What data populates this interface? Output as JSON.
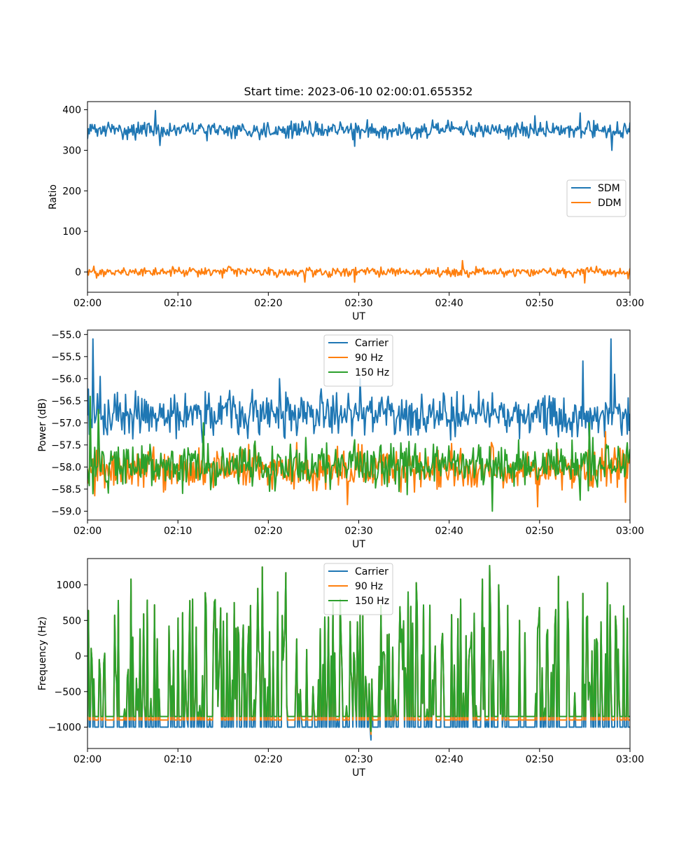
{
  "title": "Start time: 2023-06-10 02:00:01.655352",
  "chart_data": [
    {
      "type": "line",
      "xlabel": "UT",
      "ylabel": "Ratio",
      "x_range": [
        "02:00",
        "03:00"
      ],
      "xticks": [
        "02:00",
        "02:10",
        "02:20",
        "02:30",
        "02:40",
        "02:50",
        "03:00"
      ],
      "ylim": [
        -50,
        420
      ],
      "yticks": [
        "0",
        "100",
        "200",
        "300",
        "400"
      ],
      "ytick_values": [
        0,
        100,
        200,
        300,
        400
      ],
      "legend": "center-right",
      "n_points": 600,
      "series": [
        {
          "name": "SDM",
          "color": "#1f77b4",
          "mean": 350,
          "noise": 14,
          "spikes": [
            [
              2,
              335
            ],
            [
              7.5,
              398
            ],
            [
              8,
              312
            ],
            [
              24.5,
              372
            ],
            [
              29.5,
              310
            ],
            [
              42,
              372
            ],
            [
              49.5,
              385
            ],
            [
              54.5,
              392
            ],
            [
              58,
              300
            ]
          ]
        },
        {
          "name": "DDM",
          "color": "#ff7f0e",
          "mean": 0,
          "noise": 8,
          "spikes": [
            [
              1,
              -15
            ],
            [
              24,
              -25
            ],
            [
              29.5,
              -25
            ],
            [
              41.5,
              28
            ],
            [
              55,
              -27
            ],
            [
              59.8,
              -17
            ]
          ]
        }
      ]
    },
    {
      "type": "line",
      "xlabel": "UT",
      "ylabel": "Power (dB)",
      "x_range": [
        "02:00",
        "03:00"
      ],
      "xticks": [
        "02:00",
        "02:10",
        "02:20",
        "02:30",
        "02:40",
        "02:50",
        "03:00"
      ],
      "ylim": [
        -59.2,
        -54.9
      ],
      "yticks": [
        "−55.0",
        "−55.5",
        "−56.0",
        "−56.5",
        "−57.0",
        "−57.5",
        "−58.0",
        "−58.5",
        "−59.0"
      ],
      "ytick_values": [
        -55.0,
        -55.5,
        -56.0,
        -56.5,
        -57.0,
        -57.5,
        -58.0,
        -58.5,
        -59.0
      ],
      "legend": "upper-center",
      "n_points": 600,
      "series": [
        {
          "name": "Carrier",
          "color": "#1f77b4",
          "mean": -56.8,
          "noise": 0.35,
          "spikes": [
            [
              0.6,
              -55.1
            ],
            [
              1.4,
              -55.95
            ],
            [
              21.2,
              -56.0
            ],
            [
              30.2,
              -56.0
            ],
            [
              54.8,
              -55.6
            ],
            [
              55.5,
              -57.5
            ],
            [
              57.9,
              -55.1
            ],
            [
              58.3,
              -55.9
            ]
          ]
        },
        {
          "name": "90 Hz",
          "color": "#ff7f0e",
          "mean": -58.05,
          "noise": 0.32,
          "spikes": [
            [
              0.8,
              -58.65
            ],
            [
              28.7,
              -58.85
            ],
            [
              49.8,
              -58.9
            ],
            [
              57.3,
              -57.2
            ],
            [
              59.5,
              -58.8
            ]
          ]
        },
        {
          "name": "150 Hz",
          "color": "#2ca02c",
          "mean": -57.95,
          "noise": 0.35,
          "spikes": [
            [
              0.3,
              -56.4
            ],
            [
              1.2,
              -56.7
            ],
            [
              12.8,
              -57.0
            ],
            [
              44.8,
              -59.0
            ],
            [
              54.5,
              -58.75
            ],
            [
              55.5,
              -57.0
            ]
          ]
        }
      ]
    },
    {
      "type": "line",
      "xlabel": "UT",
      "ylabel": "Frequency (Hz)",
      "x_range": [
        "02:00",
        "03:00"
      ],
      "xticks": [
        "02:00",
        "02:10",
        "02:20",
        "02:30",
        "02:40",
        "02:50",
        "03:00"
      ],
      "ylim": [
        -1300,
        1370
      ],
      "yticks": [
        "−1000",
        "−500",
        "0",
        "500",
        "1000"
      ],
      "ytick_values": [
        -1000,
        -500,
        0,
        500,
        1000
      ],
      "legend": "upper-center",
      "n_points": 600,
      "series": [
        {
          "name": "Carrier",
          "color": "#1f77b4",
          "baseline": -1000,
          "dip": [
            31.4,
            -1180
          ]
        },
        {
          "name": "90 Hz",
          "color": "#ff7f0e",
          "baseline": -900,
          "dip": [
            31.4,
            -1100
          ]
        },
        {
          "name": "150 Hz",
          "color": "#2ca02c",
          "baseline": -850,
          "dip": [
            31.4,
            -1060
          ],
          "peaks": [
            [
              0.1,
              640
            ],
            [
              1.3,
              -50
            ],
            [
              1.8,
              -100
            ],
            [
              3.4,
              780
            ],
            [
              4.8,
              1080
            ],
            [
              5.8,
              380
            ],
            [
              9.0,
              420
            ],
            [
              11.6,
              800
            ],
            [
              13.0,
              890
            ],
            [
              15.0,
              490
            ],
            [
              16.2,
              750
            ],
            [
              18.8,
              950
            ],
            [
              19.3,
              1250
            ],
            [
              20.1,
              340
            ],
            [
              21.0,
              900
            ],
            [
              21.9,
              1170
            ],
            [
              24.2,
              90
            ],
            [
              28.0,
              250
            ],
            [
              29.8,
              480
            ],
            [
              30.2,
              580
            ],
            [
              33.2,
              300
            ],
            [
              35.5,
              900
            ],
            [
              36.4,
              1030
            ],
            [
              38.5,
              140
            ],
            [
              40.3,
              580
            ],
            [
              41.3,
              800
            ],
            [
              42.8,
              600
            ],
            [
              43.7,
              1080
            ],
            [
              44.5,
              1270
            ],
            [
              45.5,
              1000
            ],
            [
              47.8,
              500
            ],
            [
              50.0,
              680
            ],
            [
              50.8,
              290
            ],
            [
              52.1,
              1120
            ],
            [
              53.2,
              400
            ],
            [
              54.8,
              880
            ],
            [
              55.2,
              540
            ],
            [
              56.4,
              180
            ],
            [
              57.5,
              1030
            ],
            [
              58.4,
              560
            ],
            [
              59.7,
              530
            ]
          ]
        }
      ]
    }
  ]
}
